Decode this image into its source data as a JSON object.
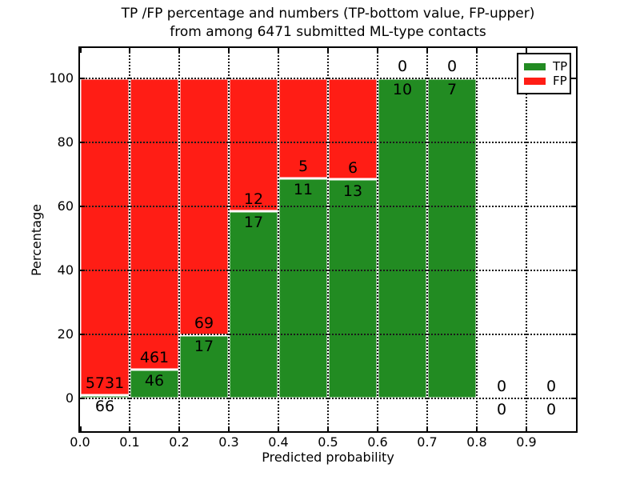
{
  "chart_data": {
    "type": "bar",
    "stacked": true,
    "title": "TP /FP percentage and numbers (TP-bottom value, FP-upper) from among 6471 submitted ML-type contacts",
    "title_lines": [
      "TP /FP percentage and numbers (TP-bottom value, FP-upper)",
      "from among 6471 submitted ML-type contacts"
    ],
    "xlabel": "Predicted probability",
    "ylabel": "Percentage",
    "xticks": [
      "0.0",
      "0.1",
      "0.2",
      "0.3",
      "0.4",
      "0.5",
      "0.6",
      "0.7",
      "0.8",
      "0.9"
    ],
    "yticks": [
      0,
      20,
      40,
      60,
      80,
      100
    ],
    "xlim": [
      0.0,
      1.0
    ],
    "ylim": [
      -10,
      110
    ],
    "grid": true,
    "grid_style": "dotted",
    "total_submitted": 6471,
    "legend": {
      "position": "upper right",
      "entries": [
        {
          "label": "TP",
          "color": "#228b22"
        },
        {
          "label": "FP",
          "color": "#ff1d15"
        }
      ]
    },
    "bins": [
      {
        "range": [
          0.0,
          0.1
        ],
        "tp_count": 66,
        "fp_count": 5731,
        "tp_pct": 1.1,
        "fp_pct": 98.9
      },
      {
        "range": [
          0.1,
          0.2
        ],
        "tp_count": 46,
        "fp_count": 461,
        "tp_pct": 9.1,
        "fp_pct": 90.9
      },
      {
        "range": [
          0.2,
          0.3
        ],
        "tp_count": 17,
        "fp_count": 69,
        "tp_pct": 19.8,
        "fp_pct": 80.2
      },
      {
        "range": [
          0.3,
          0.4
        ],
        "tp_count": 17,
        "fp_count": 12,
        "tp_pct": 58.6,
        "fp_pct": 41.4
      },
      {
        "range": [
          0.4,
          0.5
        ],
        "tp_count": 11,
        "fp_count": 5,
        "tp_pct": 68.8,
        "fp_pct": 31.2
      },
      {
        "range": [
          0.5,
          0.6
        ],
        "tp_count": 13,
        "fp_count": 6,
        "tp_pct": 68.4,
        "fp_pct": 31.6
      },
      {
        "range": [
          0.6,
          0.7
        ],
        "tp_count": 10,
        "fp_count": 0,
        "tp_pct": 100,
        "fp_pct": 0
      },
      {
        "range": [
          0.7,
          0.8
        ],
        "tp_count": 7,
        "fp_count": 0,
        "tp_pct": 100,
        "fp_pct": 0
      },
      {
        "range": [
          0.8,
          0.9
        ],
        "tp_count": 0,
        "fp_count": 0,
        "tp_pct": null,
        "fp_pct": null
      },
      {
        "range": [
          0.9,
          1.0
        ],
        "tp_count": 0,
        "fp_count": 0,
        "tp_pct": null,
        "fp_pct": null
      }
    ]
  }
}
